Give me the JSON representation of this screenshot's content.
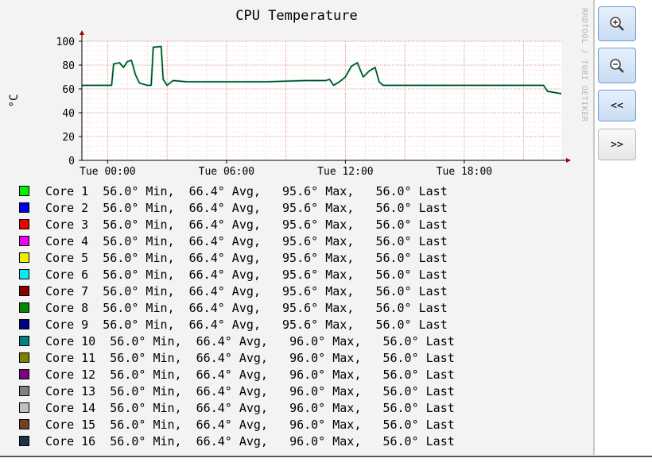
{
  "window": {
    "watermark": "RRDTOOL / TOBI OETIKER"
  },
  "controls": {
    "zoom_in_icon": "magnifier-plus-icon",
    "zoom_out_icon": "magnifier-minus-icon",
    "prev_label": "<<",
    "next_label": ">>"
  },
  "colors": {
    "accent": "#6d9bd1",
    "grid_minor": "#e8b8b8",
    "grid_major": "#e07a7a",
    "axis_arrow": "#a40000",
    "line_main": "#0c3355",
    "line_highlight": "#00ee00"
  },
  "chart_data": {
    "type": "line",
    "title": "CPU Temperature",
    "ylabel": "°C",
    "xlabel": "",
    "ylim": [
      0,
      100
    ],
    "yticks": [
      0,
      20,
      40,
      60,
      80,
      100
    ],
    "xlim": [
      -1.3,
      22.9
    ],
    "xticks": [
      {
        "value": 0,
        "label": "Tue 00:00"
      },
      {
        "value": 6,
        "label": "Tue 06:00"
      },
      {
        "value": 12,
        "label": "Tue 12:00"
      },
      {
        "value": 18,
        "label": "Tue 18:00"
      }
    ],
    "grid": true,
    "series_points": [
      [
        -1.3,
        63
      ],
      [
        0.2,
        63
      ],
      [
        0.3,
        81
      ],
      [
        0.6,
        82
      ],
      [
        0.8,
        78
      ],
      [
        1.0,
        83
      ],
      [
        1.2,
        84
      ],
      [
        1.4,
        72
      ],
      [
        1.6,
        65
      ],
      [
        2.0,
        63
      ],
      [
        2.2,
        63
      ],
      [
        2.3,
        95
      ],
      [
        2.7,
        95.6
      ],
      [
        2.8,
        68
      ],
      [
        3.0,
        63
      ],
      [
        3.3,
        67
      ],
      [
        4.0,
        66
      ],
      [
        6.0,
        66
      ],
      [
        8.0,
        66
      ],
      [
        10.0,
        67
      ],
      [
        11.0,
        67
      ],
      [
        11.2,
        68
      ],
      [
        11.4,
        63
      ],
      [
        11.7,
        66
      ],
      [
        12.0,
        70
      ],
      [
        12.3,
        79
      ],
      [
        12.6,
        82
      ],
      [
        12.9,
        70
      ],
      [
        13.2,
        75
      ],
      [
        13.5,
        78
      ],
      [
        13.7,
        66
      ],
      [
        13.9,
        63
      ],
      [
        15.0,
        63
      ],
      [
        18.0,
        63
      ],
      [
        22.0,
        63
      ],
      [
        22.2,
        58
      ],
      [
        22.9,
        56
      ]
    ],
    "series": [
      {
        "name": "Core 1",
        "color": "#00ee00",
        "min": "56.0°",
        "avg": "66.4°",
        "max": "95.6°",
        "last": "56.0°"
      },
      {
        "name": "Core 2",
        "color": "#0000ee",
        "min": "56.0°",
        "avg": "66.4°",
        "max": "95.6°",
        "last": "56.0°"
      },
      {
        "name": "Core 3",
        "color": "#ee0000",
        "min": "56.0°",
        "avg": "66.4°",
        "max": "95.6°",
        "last": "56.0°"
      },
      {
        "name": "Core 4",
        "color": "#ee00ee",
        "min": "56.0°",
        "avg": "66.4°",
        "max": "95.6°",
        "last": "56.0°"
      },
      {
        "name": "Core 5",
        "color": "#eeee00",
        "min": "56.0°",
        "avg": "66.4°",
        "max": "95.6°",
        "last": "56.0°"
      },
      {
        "name": "Core 6",
        "color": "#00eeee",
        "min": "56.0°",
        "avg": "66.4°",
        "max": "95.6°",
        "last": "56.0°"
      },
      {
        "name": "Core 7",
        "color": "#880000",
        "min": "56.0°",
        "avg": "66.4°",
        "max": "95.6°",
        "last": "56.0°"
      },
      {
        "name": "Core 8",
        "color": "#008800",
        "min": "56.0°",
        "avg": "66.4°",
        "max": "95.6°",
        "last": "56.0°"
      },
      {
        "name": "Core 9",
        "color": "#000088",
        "min": "56.0°",
        "avg": "66.4°",
        "max": "95.6°",
        "last": "56.0°"
      },
      {
        "name": "Core 10",
        "color": "#008080",
        "min": "56.0°",
        "avg": "66.4°",
        "max": "96.0°",
        "last": "56.0°"
      },
      {
        "name": "Core 11",
        "color": "#808000",
        "min": "56.0°",
        "avg": "66.4°",
        "max": "96.0°",
        "last": "56.0°"
      },
      {
        "name": "Core 12",
        "color": "#800080",
        "min": "56.0°",
        "avg": "66.4°",
        "max": "96.0°",
        "last": "56.0°"
      },
      {
        "name": "Core 13",
        "color": "#808080",
        "min": "56.0°",
        "avg": "66.4°",
        "max": "96.0°",
        "last": "56.0°"
      },
      {
        "name": "Core 14",
        "color": "#c0c0c0",
        "min": "56.0°",
        "avg": "66.4°",
        "max": "96.0°",
        "last": "56.0°"
      },
      {
        "name": "Core 15",
        "color": "#704028",
        "min": "56.0°",
        "avg": "66.4°",
        "max": "96.0°",
        "last": "56.0°"
      },
      {
        "name": "Core 16",
        "color": "#1a3450",
        "min": "56.0°",
        "avg": "66.4°",
        "max": "96.0°",
        "last": "56.0°"
      }
    ],
    "legend_format": {
      "min_suffix": " Min,",
      "avg_suffix": " Avg,",
      "max_suffix": " Max,",
      "last_suffix": " Last"
    }
  }
}
